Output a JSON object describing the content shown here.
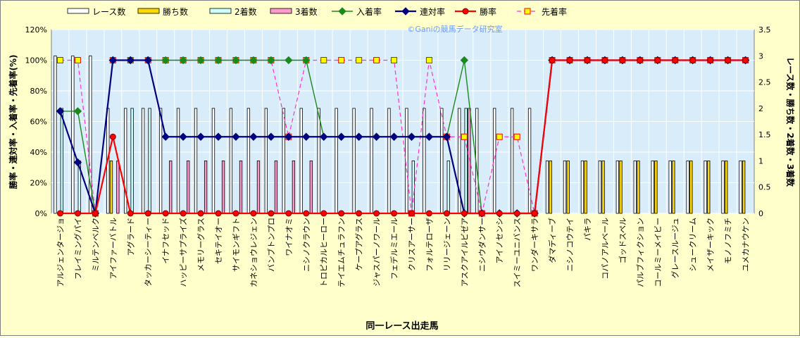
{
  "chart_data": {
    "type": "bar",
    "watermark": "©Ganiの競馬データ研究室",
    "xlabel": "同一レース出走馬",
    "ylabel_left": "勝率・連対率・入着率・先着率(%)",
    "ylabel_right": "レース数・勝ち数・2着数・3着数",
    "ylim_left": [
      0,
      120
    ],
    "ylim_right": [
      0,
      3.5
    ],
    "left_ticks": [
      "0%",
      "20%",
      "40%",
      "60%",
      "80%",
      "100%",
      "120%"
    ],
    "right_ticks": [
      "0",
      "0.5",
      "1",
      "1.5",
      "2",
      "2.5",
      "3",
      "3.5"
    ],
    "grid": true,
    "legend_position": "top",
    "colors": {
      "races": "#ffffff",
      "wins": "#ffd700",
      "second": "#ccffff",
      "third": "#ff99cc",
      "place_rate": "#1a8a1a",
      "quinella_rate": "#000080",
      "win_rate": "#ff0000",
      "beat_rate": "#ff33cc",
      "plot_bg": "#d8ecfa",
      "grid": "#ffffff"
    },
    "legend": [
      "レース数",
      "勝ち数",
      "2着数",
      "3着数",
      "入着率",
      "連対率",
      "勝率",
      "先着率"
    ],
    "categories": [
      "アルジェンタージョ",
      "フレイミングパイ",
      "ミルテンベルク",
      "アイファーバトル",
      "アグラード",
      "タッカーシーティー",
      "イナフセッド",
      "ハッピーサプライズ",
      "メモリーグラス",
      "セキテイオー",
      "サイモンギフト",
      "カネショウレジェン",
      "バンブトンプロ",
      "ワイナオミ",
      "ニシノクラウン",
      "トロピカルヒーロー",
      "テイエムチュラフン",
      "ケープアグラス",
      "ジャスパーノワール",
      "フェデルミエール",
      "クリスアーサー",
      "フォルテローザ",
      "リリージェーン",
      "アスクアイルビゼア",
      "ニシウダンサー",
      "アイノセンシ",
      "スイミーユニバンス",
      "ワンダーキサラ",
      "ダマディーブ",
      "ニシノコウテイ",
      "パキラ",
      "コパノアルベール",
      "ゴッドスペル",
      "パルブフィクション",
      "コールミーメイビー",
      "グレースルージュ",
      "シュークリーム",
      "メイザーキック",
      "モノノフミチ",
      "ユメカナウケン"
    ],
    "series": [
      {
        "name": "レース数",
        "kind": "bar",
        "axis": "right",
        "values": [
          3,
          3,
          3,
          2,
          2,
          2,
          2,
          2,
          2,
          2,
          2,
          2,
          2,
          2,
          2,
          2,
          2,
          2,
          2,
          2,
          2,
          2,
          2,
          2,
          2,
          2,
          2,
          2,
          1,
          1,
          1,
          1,
          1,
          1,
          1,
          1,
          1,
          1,
          1,
          1
        ]
      },
      {
        "name": "勝ち数",
        "kind": "bar",
        "axis": "right",
        "values": [
          0,
          0,
          0,
          1,
          0,
          0,
          0,
          0,
          0,
          0,
          0,
          0,
          0,
          0,
          0,
          0,
          0,
          0,
          0,
          0,
          0,
          0,
          0,
          0,
          0,
          0,
          0,
          0,
          1,
          1,
          1,
          1,
          1,
          1,
          1,
          1,
          1,
          1,
          1,
          1
        ]
      },
      {
        "name": "2着数",
        "kind": "bar",
        "axis": "right",
        "values": [
          2,
          1,
          0,
          0,
          2,
          2,
          0,
          0,
          0,
          0,
          0,
          0,
          0,
          0,
          0,
          0,
          0,
          0,
          0,
          0,
          1,
          0,
          1,
          2,
          0,
          0,
          0,
          0,
          0,
          0,
          0,
          0,
          0,
          0,
          0,
          0,
          0,
          0,
          0,
          0
        ]
      },
      {
        "name": "3着数",
        "kind": "bar",
        "axis": "right",
        "values": [
          0,
          0,
          0,
          1,
          0,
          0,
          1,
          1,
          1,
          1,
          1,
          1,
          1,
          1,
          1,
          0,
          0,
          0,
          0,
          0,
          0,
          0,
          0,
          2,
          0,
          0,
          0,
          0,
          0,
          0,
          0,
          0,
          0,
          0,
          0,
          0,
          0,
          0,
          0,
          0
        ]
      },
      {
        "name": "入着率",
        "kind": "line",
        "axis": "left",
        "values": [
          66.7,
          66.7,
          0,
          100,
          100,
          100,
          100,
          100,
          100,
          100,
          100,
          100,
          100,
          100,
          100,
          50,
          50,
          50,
          50,
          50,
          50,
          50,
          50,
          100,
          0,
          0,
          0,
          0,
          100,
          100,
          100,
          100,
          100,
          100,
          100,
          100,
          100,
          100,
          100,
          100
        ]
      },
      {
        "name": "連対率",
        "kind": "line",
        "axis": "left",
        "values": [
          66.7,
          33.3,
          0,
          100,
          100,
          100,
          50,
          50,
          50,
          50,
          50,
          50,
          50,
          50,
          50,
          50,
          50,
          50,
          50,
          50,
          50,
          50,
          50,
          0,
          0,
          0,
          0,
          0,
          100,
          100,
          100,
          100,
          100,
          100,
          100,
          100,
          100,
          100,
          100,
          100
        ]
      },
      {
        "name": "勝率",
        "kind": "line",
        "axis": "left",
        "values": [
          0,
          0,
          0,
          50,
          0,
          0,
          0,
          0,
          0,
          0,
          0,
          0,
          0,
          0,
          0,
          0,
          0,
          0,
          0,
          0,
          0,
          0,
          0,
          0,
          0,
          0,
          0,
          0,
          100,
          100,
          100,
          100,
          100,
          100,
          100,
          100,
          100,
          100,
          100,
          100
        ]
      },
      {
        "name": "先着率",
        "kind": "line",
        "axis": "left",
        "values": [
          100,
          100,
          0,
          100,
          100,
          100,
          100,
          100,
          100,
          100,
          100,
          100,
          100,
          50,
          100,
          100,
          100,
          100,
          100,
          100,
          0,
          100,
          50,
          50,
          0,
          50,
          50,
          0,
          100,
          100,
          100,
          100,
          100,
          100,
          100,
          100,
          100,
          100,
          100,
          100
        ]
      }
    ]
  }
}
